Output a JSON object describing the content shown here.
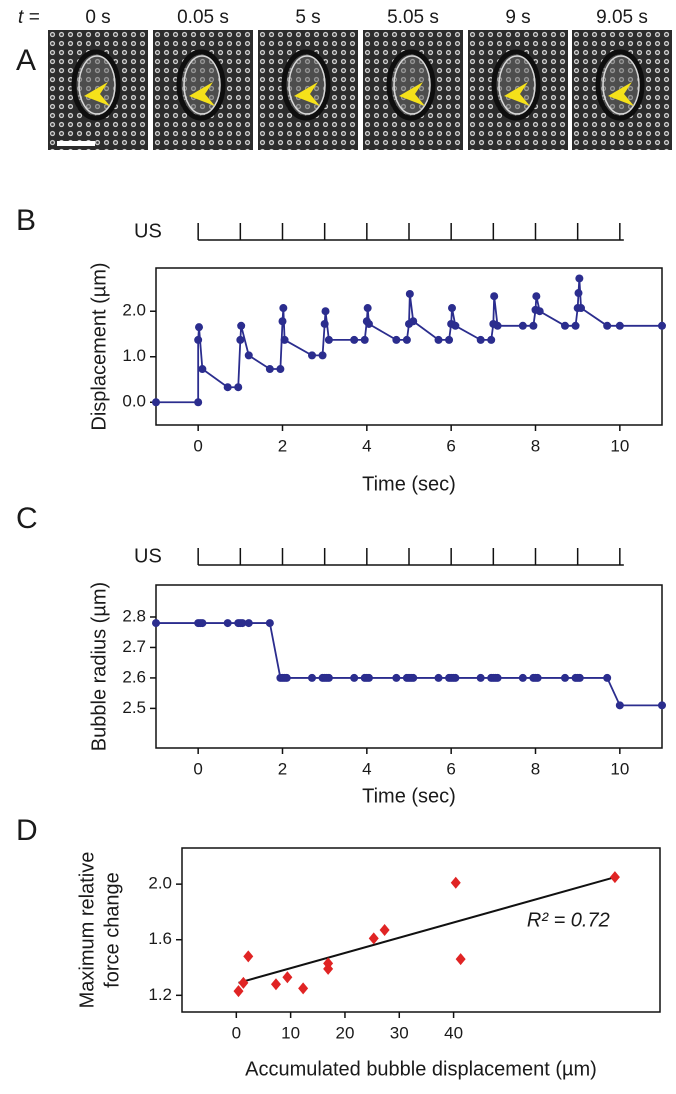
{
  "panel_a": {
    "label": "A",
    "time_prefix": "t =",
    "times": [
      "0 s",
      "0.05 s",
      "5 s",
      "5.05 s",
      "9 s",
      "9.05 s"
    ]
  },
  "chart_data": [
    {
      "type": "line",
      "panel_label": "B",
      "pulse_label": "US",
      "pulses": [
        0,
        1,
        2,
        3,
        4,
        5,
        6,
        7,
        8,
        9,
        10
      ],
      "xlabel": "Time (sec)",
      "ylabel": "Displacement (µm)",
      "xlim": [
        -1,
        11
      ],
      "ylim": [
        -0.5,
        2.95
      ],
      "xticks": [
        0,
        2,
        4,
        6,
        8,
        10
      ],
      "yticks": [
        {
          "value": 0,
          "label": "0.0"
        },
        {
          "value": 1,
          "label": "1.0"
        },
        {
          "value": 2,
          "label": "2.0"
        }
      ],
      "x": [
        -1,
        0,
        0,
        0.02,
        0.1,
        0.7,
        0.95,
        1,
        1.02,
        1.2,
        1.7,
        1.95,
        2,
        2.02,
        2.05,
        2.7,
        2.95,
        3,
        3.02,
        3.1,
        3.7,
        3.95,
        4,
        4.02,
        4.05,
        4.7,
        4.95,
        5,
        5.02,
        5.1,
        5.7,
        5.95,
        6,
        6.02,
        6.1,
        6.7,
        6.95,
        7,
        7.02,
        7.1,
        7.7,
        7.95,
        8,
        8.02,
        8.1,
        8.7,
        8.95,
        9,
        9.02,
        9.04,
        9.08,
        9.7,
        10,
        11
      ],
      "series": [
        {
          "color": "#2b2d8e",
          "values": [
            0,
            0,
            1.37,
            1.65,
            0.73,
            0.33,
            0.33,
            1.37,
            1.68,
            1.03,
            0.73,
            0.73,
            1.78,
            2.07,
            1.37,
            1.03,
            1.03,
            1.72,
            2.0,
            1.37,
            1.37,
            1.37,
            1.78,
            2.07,
            1.72,
            1.37,
            1.37,
            1.72,
            2.38,
            1.78,
            1.37,
            1.37,
            1.72,
            2.07,
            1.68,
            1.37,
            1.37,
            1.72,
            2.33,
            1.68,
            1.68,
            1.68,
            2.03,
            2.33,
            2.0,
            1.68,
            1.68,
            2.07,
            2.4,
            2.72,
            2.07,
            1.68,
            1.68,
            1.68
          ]
        }
      ]
    },
    {
      "type": "line",
      "panel_label": "C",
      "pulse_label": "US",
      "pulses": [
        0,
        1,
        2,
        3,
        4,
        5,
        6,
        7,
        8,
        9,
        10
      ],
      "xlabel": "Time (sec)",
      "ylabel": "Bubble radius (µm)",
      "xlim": [
        -1,
        11
      ],
      "ylim": [
        2.37,
        2.905
      ],
      "xticks": [
        0,
        2,
        4,
        6,
        8,
        10
      ],
      "yticks": [
        2.5,
        2.6,
        2.7,
        2.8
      ],
      "x": [
        -1,
        0,
        0.05,
        0.1,
        0.7,
        0.95,
        1,
        1.05,
        1.2,
        1.7,
        1.95,
        2,
        2.05,
        2.1,
        2.7,
        2.95,
        3,
        3.05,
        3.1,
        3.7,
        3.95,
        4,
        4.05,
        4.7,
        4.95,
        5,
        5.05,
        5.1,
        5.7,
        5.95,
        6,
        6.05,
        6.1,
        6.7,
        6.95,
        7,
        7.05,
        7.1,
        7.7,
        7.95,
        8,
        8.05,
        8.7,
        8.95,
        9,
        9.05,
        9.7,
        10,
        11
      ],
      "series": [
        {
          "color": "#2b2d8e",
          "values": [
            2.78,
            2.78,
            2.78,
            2.78,
            2.78,
            2.78,
            2.78,
            2.78,
            2.78,
            2.78,
            2.6,
            2.6,
            2.6,
            2.6,
            2.6,
            2.6,
            2.6,
            2.6,
            2.6,
            2.6,
            2.6,
            2.6,
            2.6,
            2.6,
            2.6,
            2.6,
            2.6,
            2.6,
            2.6,
            2.6,
            2.6,
            2.6,
            2.6,
            2.6,
            2.6,
            2.6,
            2.6,
            2.6,
            2.6,
            2.6,
            2.6,
            2.6,
            2.6,
            2.6,
            2.6,
            2.6,
            2.6,
            2.51,
            2.51
          ]
        }
      ]
    },
    {
      "type": "scatter",
      "panel_label": "D",
      "xlabel": "Accumulated bubble displacement (µm)",
      "ylabel": [
        "Maximum relative",
        "force change"
      ],
      "xlim": [
        -10,
        78
      ],
      "ylim": [
        1.08,
        2.26
      ],
      "xticks": [
        0,
        10,
        20,
        30,
        40
      ],
      "yticks": [
        1.2,
        1.6,
        {
          "value": 2,
          "label": "2.0"
        }
      ],
      "x": [
        0.4,
        1.3,
        2.2,
        7.3,
        9.4,
        12.3,
        16.9,
        16.9,
        25.3,
        27.3,
        40.4,
        41.3,
        69.7
      ],
      "series": [
        {
          "color": "#e02424",
          "values": [
            1.23,
            1.29,
            1.48,
            1.28,
            1.33,
            1.25,
            1.43,
            1.39,
            1.61,
            1.67,
            2.01,
            1.46,
            2.05
          ]
        }
      ],
      "fit": {
        "color": "#111111",
        "x": [
          0.4,
          69.7
        ],
        "values": [
          1.29,
          2.05
        ]
      },
      "annotation": "R² = 0.72"
    }
  ]
}
